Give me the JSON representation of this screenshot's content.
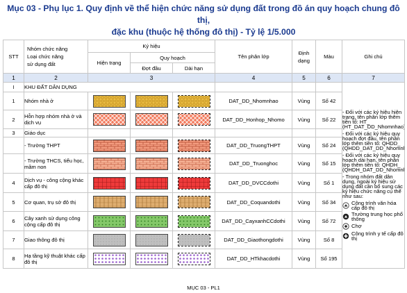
{
  "title_line1": "Mục 03 - Phụ lục 1. Quy định về thể hiện chức năng sử dụng đất trong đồ án quy hoạch chung đô thị,",
  "title_line2": "đặc khu (thuộc hệ thống đô thị) - Tỷ lệ 1/5.000",
  "headers": {
    "stt": "STT",
    "group1": "Nhóm chức năng",
    "group2": "Loại chức năng",
    "group3": "sử dụng đất",
    "kyhieu": "Ký hiệu",
    "hientrang": "Hiện trạng",
    "quyhoach": "Quy hoạch",
    "dotdau": "Đợt đầu",
    "daihan": "Dài hạn",
    "tenlop": "Tên phân lớp",
    "dinhdang1": "Định",
    "dinhdang2": "dạng",
    "mau": "Màu",
    "ghichu": "Ghi chú"
  },
  "col_numbers": [
    "1",
    "2",
    "3",
    "4",
    "5",
    "6",
    "7"
  ],
  "section": {
    "stt": "I",
    "name": "KHU ĐẤT DÂN DỤNG"
  },
  "rows": [
    {
      "stt": "1",
      "name": "Nhóm nhà ở",
      "layer": "DAT_DD_Nhomnhao",
      "format": "Vùng",
      "color": "Số 42"
    },
    {
      "stt": "2",
      "name": "Hỗn hợp nhóm nhà ở và dịch vụ",
      "layer": "DAT_DD_Honhop_Nhomo",
      "format": "Vùng",
      "color": "Số 22"
    },
    {
      "stt": "3",
      "name": "Giáo dục"
    },
    {
      "stt": "",
      "name": "- Trường THPT",
      "layer": "DAT_DD_TruongTHPT",
      "format": "Vùng",
      "color": "Số 24"
    },
    {
      "stt": "",
      "name": "- Trường THCS, tiểu học, mầm non",
      "layer": "DAT_DD_Truonghoc",
      "format": "Vùng",
      "color": "Số 15"
    },
    {
      "stt": "4",
      "name": "Dịch vụ - công cộng khác cấp đô thị",
      "layer": "DAT_DD_DVCCdothi",
      "format": "Vùng",
      "color": "Số 1"
    },
    {
      "stt": "5",
      "name": "Cơ quan, trụ sở đô thị",
      "layer": "DAT_DD_Coquandothi",
      "format": "Vùng",
      "color": "Số 34"
    },
    {
      "stt": "6",
      "name": "Cây xanh sử dụng công cộng cấp đô thị",
      "layer": "DAT_DD_CayxanhCCdothi",
      "format": "Vùng",
      "color": "Số 72"
    },
    {
      "stt": "7",
      "name": "Giao thông đô thị",
      "layer": "DAT_DD_Giaothongdothi",
      "format": "Vùng",
      "color": "Số 8"
    },
    {
      "stt": "8",
      "name": "Hạ tầng kỹ thuật khác cấp đô thị",
      "layer": "DAT_DD_HTkhacdothi",
      "format": "Vùng",
      "color": "Số 195"
    }
  ],
  "notes": {
    "n1": "- Đối với các ký hiệu hiện trạng, tên phân lớp thêm tiền tố: HT_ (HT_DAT_DD_Nhomnhao)",
    "n2": "- Đối với các ký hiệu quy hoạch đợt đầu, tên phân lớp thêm tiền tố: QHDD_ (QHDD_DAT_DD_Nhomnhao)",
    "n3": "- Đối với các ký hiệu quy hoạch dài hạn, tên phân lớp thêm tiền tố: QHDH_ (QHDH_DAT_DD_Nhomnhao)",
    "n4": "- Trong nhóm đất dân dụng, ngoài ký hiệu sử dụng đất cần bổ sung các ký hiệu chức năng cụ thể như sau:",
    "s1": "Công trình văn hóa cấp đô thị",
    "s2": "Trường trung học phổ thông",
    "s3": "Chợ",
    "s4": "Công trình y tế cấp đô thị"
  },
  "footer": "MỤC 03 - PL1",
  "colors": {
    "title": "#1a3a8f",
    "number_row": "#dde6f5",
    "housing": "#f3c84a",
    "mixed": "#f27a5c",
    "school_high": "#f39c7f",
    "school_low": "#f6b295",
    "service": "#ee3a3a",
    "office": "#e3b274",
    "green": "#84c869",
    "traffic": "#bfbfbf",
    "infra": "#b48ad6"
  }
}
